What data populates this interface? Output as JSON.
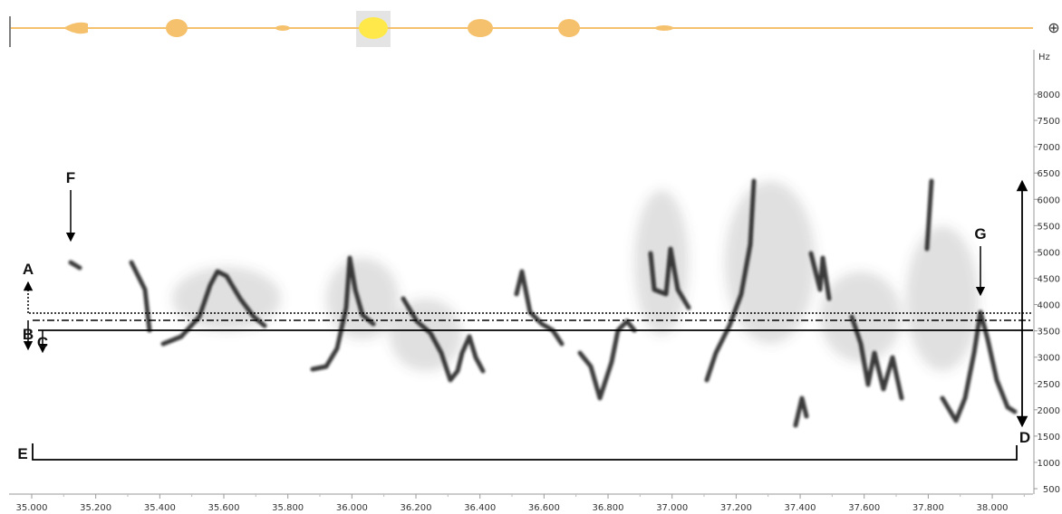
{
  "waveform": {
    "zoom_icon": "⊕"
  },
  "spectrogram": {
    "y_unit": "Hz",
    "y_ticks": [
      8000,
      7500,
      7000,
      6500,
      6000,
      5500,
      5000,
      4500,
      4000,
      3500,
      3000,
      2500,
      2000,
      1500,
      1000,
      500
    ],
    "x_ticks": [
      "35.000",
      "35.200",
      "35.400",
      "35.600",
      "35.800",
      "36.000",
      "36.200",
      "36.400",
      "36.600",
      "36.800",
      "37.000",
      "37.200",
      "37.400",
      "37.600",
      "37.800",
      "38.000"
    ],
    "annotations": [
      "A",
      "B",
      "C",
      "D",
      "E",
      "F",
      "G"
    ]
  }
}
